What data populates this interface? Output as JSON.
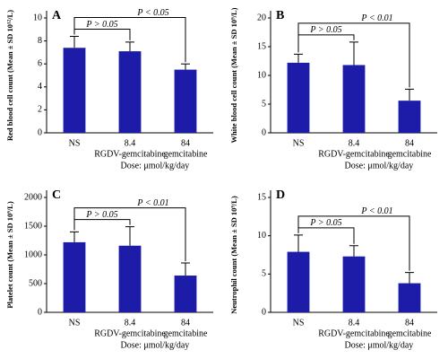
{
  "chart_data": [
    {
      "type": "bar",
      "panel_label": "A",
      "ylabel": "Red blood cell count (Mean ± SD 10¹²/L)",
      "categories": [
        "NS",
        "8.4",
        "84"
      ],
      "category_sublabels": [
        null,
        "RGDV-gemcitabine",
        "gemcitabine"
      ],
      "xlabel": "Dose: μmol/kg/day",
      "values": [
        7.4,
        7.1,
        5.5
      ],
      "errors": [
        1.0,
        0.8,
        0.5
      ],
      "color": "#1c1ca8",
      "ylim": [
        0,
        10
      ],
      "yticks": [
        0,
        2,
        4,
        6,
        8,
        10
      ],
      "comparisons": [
        "P > 0.05",
        "P < 0.05"
      ]
    },
    {
      "type": "bar",
      "panel_label": "B",
      "ylabel": "White blood cell count (Mean ± SD 10⁹/L)",
      "categories": [
        "NS",
        "8.4",
        "84"
      ],
      "category_sublabels": [
        null,
        "RGDV-gemcitabine",
        "gemcitabine"
      ],
      "xlabel": "Dose: μmol/kg/day",
      "values": [
        12.2,
        11.8,
        5.6
      ],
      "errors": [
        1.5,
        4.0,
        2.0
      ],
      "color": "#1c1ca8",
      "ylim": [
        0,
        20
      ],
      "yticks": [
        0,
        5,
        10,
        15,
        20
      ],
      "comparisons": [
        "P > 0.05",
        "P < 0.01"
      ]
    },
    {
      "type": "bar",
      "panel_label": "C",
      "ylabel": "Platelet count (Mean ± SD 10⁹/L)",
      "categories": [
        "NS",
        "8.4",
        "84"
      ],
      "category_sublabels": [
        null,
        "RGDV-gemcitabine",
        "gemcitabine"
      ],
      "xlabel": "Dose: μmol/kg/day",
      "values": [
        1220,
        1160,
        640
      ],
      "errors": [
        180,
        330,
        220
      ],
      "color": "#1c1ca8",
      "ylim": [
        0,
        2000
      ],
      "yticks": [
        0,
        500,
        1000,
        1500,
        2000
      ],
      "comparisons": [
        "P > 0.05",
        "P < 0.01"
      ]
    },
    {
      "type": "bar",
      "panel_label": "D",
      "ylabel": "Neutrophil count (Mean ± SD 10⁹/L)",
      "categories": [
        "NS",
        "8.4",
        "84"
      ],
      "category_sublabels": [
        null,
        "RGDV-gemcitabine",
        "gemcitabine"
      ],
      "xlabel": "Dose: μmol/kg/day",
      "values": [
        7.9,
        7.3,
        3.8
      ],
      "errors": [
        2.2,
        1.4,
        1.4
      ],
      "color": "#1c1ca8",
      "ylim": [
        0,
        15
      ],
      "yticks": [
        0,
        5,
        10,
        15
      ],
      "comparisons": [
        "P > 0.05",
        "P < 0.01"
      ]
    }
  ]
}
